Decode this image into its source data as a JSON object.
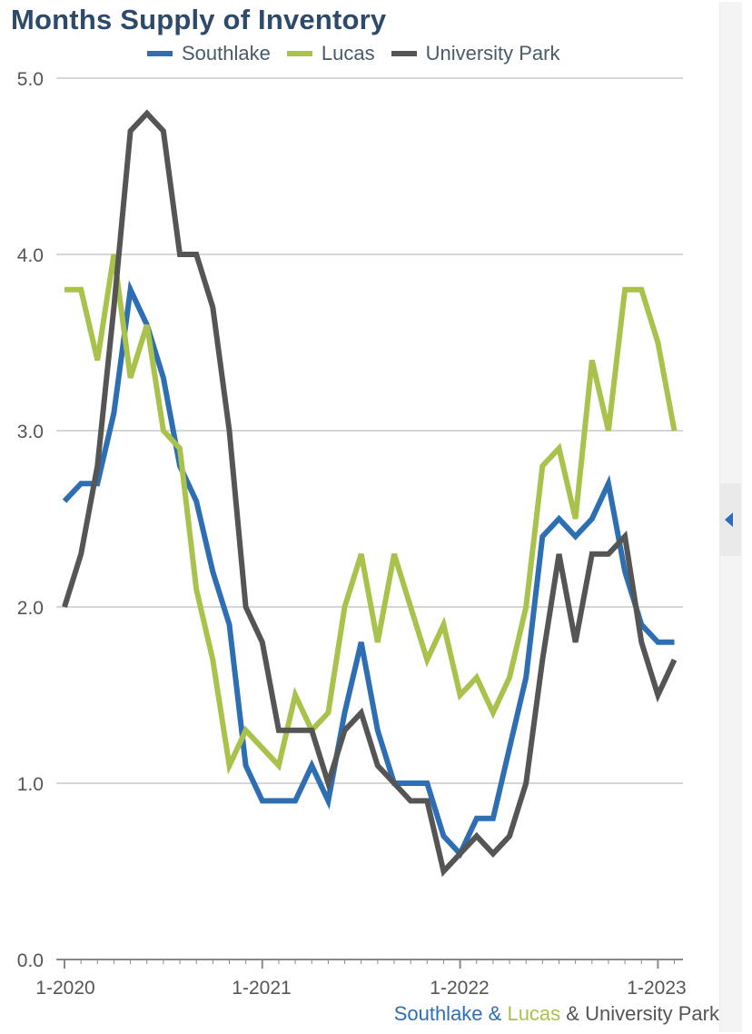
{
  "chart_data": {
    "type": "line",
    "title": "Months Supply of Inventory",
    "x_tick_labels": [
      "1-2020",
      "1-2021",
      "1-2022",
      "1-2023"
    ],
    "ylim": [
      0,
      5
    ],
    "yticks": [
      "0.0",
      "1.0",
      "2.0",
      "3.0",
      "4.0",
      "5.0"
    ],
    "grid": true,
    "legend_placement": "top",
    "months": 38,
    "series": [
      {
        "name": "Southlake",
        "color": "#2e6fb3",
        "values": [
          2.6,
          2.7,
          2.7,
          3.1,
          3.8,
          3.6,
          3.3,
          2.8,
          2.6,
          2.2,
          1.9,
          1.1,
          0.9,
          0.9,
          0.9,
          1.1,
          0.9,
          1.4,
          1.8,
          1.3,
          1.0,
          1.0,
          1.0,
          0.7,
          0.6,
          0.8,
          0.8,
          1.2,
          1.6,
          2.4,
          2.5,
          2.4,
          2.5,
          2.7,
          2.2,
          1.9,
          1.8,
          1.8
        ]
      },
      {
        "name": "Lucas",
        "color": "#a9c24c",
        "values": [
          3.8,
          3.8,
          3.4,
          4.0,
          3.3,
          3.6,
          3.0,
          2.9,
          2.1,
          1.7,
          1.1,
          1.3,
          1.2,
          1.1,
          1.5,
          1.3,
          1.4,
          2.0,
          2.3,
          1.8,
          2.3,
          2.0,
          1.7,
          1.9,
          1.5,
          1.6,
          1.4,
          1.6,
          2.0,
          2.8,
          2.9,
          2.5,
          3.4,
          3.0,
          3.8,
          3.8,
          3.5,
          3.0
        ]
      },
      {
        "name": "University Park",
        "color": "#555555",
        "values": [
          2.0,
          2.3,
          2.8,
          3.7,
          4.7,
          4.8,
          4.7,
          4.0,
          4.0,
          3.7,
          3.0,
          2.0,
          1.8,
          1.3,
          1.3,
          1.3,
          1.0,
          1.3,
          1.4,
          1.1,
          1.0,
          0.9,
          0.9,
          0.5,
          0.6,
          0.7,
          0.6,
          0.7,
          1.0,
          1.7,
          2.3,
          1.8,
          2.3,
          2.3,
          2.4,
          1.8,
          1.5,
          1.7
        ]
      }
    ],
    "footer": {
      "parts": [
        {
          "text": "Southlake",
          "color": "#2e6fb3"
        },
        {
          "text": " & ",
          "color": "#2e6fb3"
        },
        {
          "text": "Lucas",
          "color": "#a9c24c"
        },
        {
          "text": " & ",
          "color": "#555555"
        },
        {
          "text": "University Park",
          "color": "#555555"
        }
      ]
    }
  },
  "ui": {
    "scroll_icon": "chevron-left-icon",
    "scroll_icon_color": "#2a6ebb"
  }
}
